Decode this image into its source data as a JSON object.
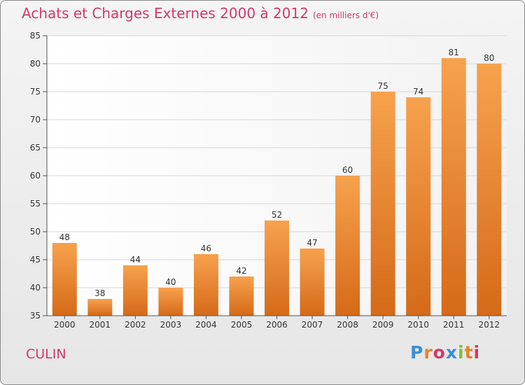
{
  "header": {
    "title": "Achats et Charges Externes 2000 à 2012",
    "unit": "(en milliers d'€)"
  },
  "footer": {
    "commune": "CULIN",
    "logo_letters": [
      "P",
      "r",
      "o",
      "x",
      "i",
      "t",
      "i"
    ],
    "logo_colors": [
      "#3b8fd6",
      "#e2842a",
      "#d23a6a",
      "#3b8fd6",
      "#7bbf3a",
      "#e2842a",
      "#d23a6a"
    ]
  },
  "chart_data": {
    "type": "bar",
    "categories": [
      "2000",
      "2001",
      "2002",
      "2003",
      "2004",
      "2005",
      "2006",
      "2007",
      "2008",
      "2009",
      "2010",
      "2011",
      "2012"
    ],
    "values": [
      48,
      38,
      44,
      40,
      46,
      42,
      52,
      47,
      60,
      75,
      74,
      81,
      80
    ],
    "ylim": [
      35,
      85
    ],
    "yticks": [
      35,
      40,
      45,
      50,
      55,
      60,
      65,
      70,
      75,
      80,
      85
    ],
    "grid": true,
    "bar_color": "#e8832a"
  }
}
